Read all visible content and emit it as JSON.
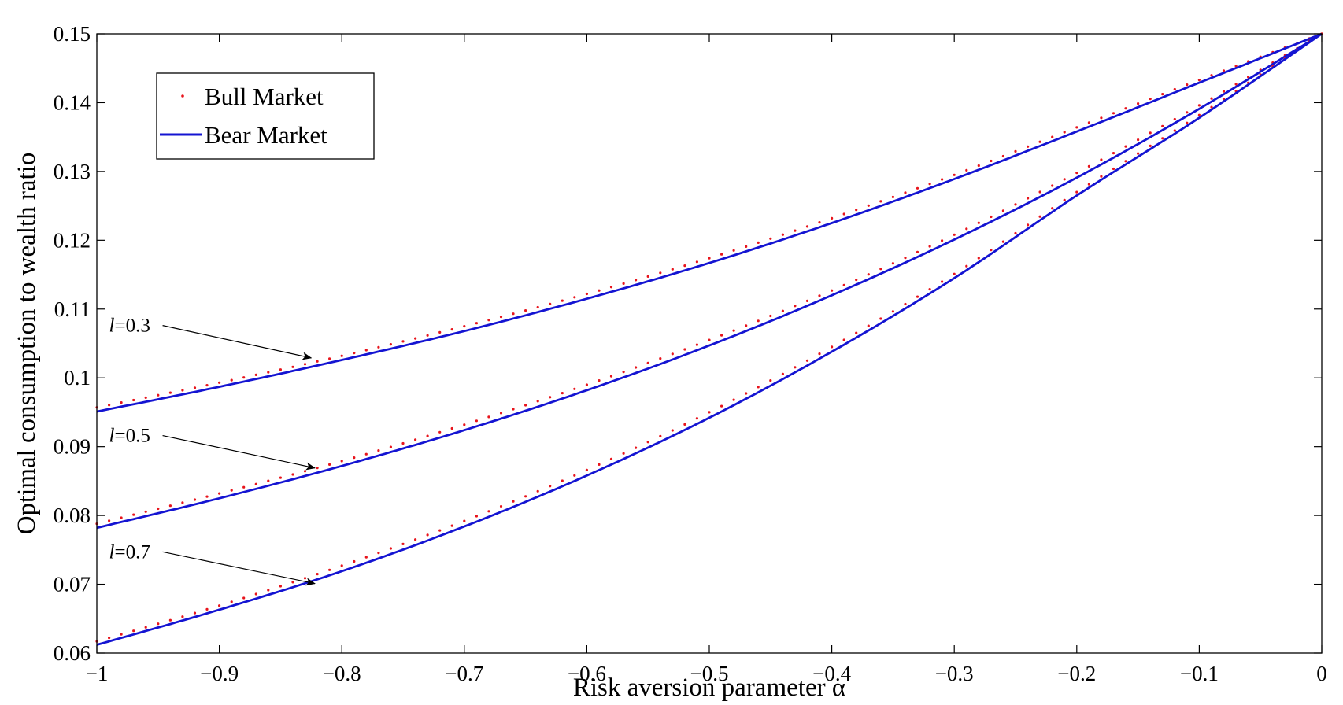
{
  "chart_data": {
    "type": "line",
    "xlabel": "Risk aversion parameter α",
    "ylabel": "Optimal consumption to wealth ratio",
    "xlim": [
      -1,
      0
    ],
    "ylim": [
      0.06,
      0.15
    ],
    "xticks": [
      -1,
      -0.9,
      -0.8,
      -0.7,
      -0.6,
      -0.5,
      -0.4,
      -0.3,
      -0.2,
      -0.1,
      0
    ],
    "xtick_labels": [
      "−1",
      "−0.9",
      "−0.8",
      "−0.7",
      "−0.6",
      "−0.5",
      "−0.4",
      "−0.3",
      "−0.2",
      "−0.1",
      "0"
    ],
    "yticks": [
      0.06,
      0.07,
      0.08,
      0.09,
      0.1,
      0.11,
      0.12,
      0.13,
      0.14,
      0.15
    ],
    "ytick_labels": [
      "0.06",
      "0.07",
      "0.08",
      "0.09",
      "0.1",
      "0.11",
      "0.12",
      "0.13",
      "0.14",
      "0.15"
    ],
    "grid": false,
    "legend_position": "top-left",
    "legend": [
      {
        "label": "Bull Market",
        "style": "dotted",
        "color": "#e8141c"
      },
      {
        "label": "Bear Market",
        "style": "solid",
        "color": "#1414d2"
      }
    ],
    "series": [
      {
        "group": "l=0.3",
        "market": "Bull Market",
        "style": "dotted",
        "color": "#e8141c",
        "x": [
          -1,
          -0.9,
          -0.8,
          -0.7,
          -0.6,
          -0.5,
          -0.4,
          -0.3,
          -0.2,
          -0.1,
          0
        ],
        "y": [
          0.0957,
          0.0993,
          0.1032,
          0.1075,
          0.1122,
          0.1174,
          0.1232,
          0.1295,
          0.1364,
          0.1433,
          0.15
        ]
      },
      {
        "group": "l=0.3",
        "market": "Bear Market",
        "style": "solid",
        "color": "#1414d2",
        "x": [
          -1,
          -0.9,
          -0.8,
          -0.7,
          -0.6,
          -0.5,
          -0.4,
          -0.3,
          -0.2,
          -0.1,
          0
        ],
        "y": [
          0.0951,
          0.0987,
          0.1026,
          0.1068,
          0.1115,
          0.1167,
          0.1225,
          0.1289,
          0.1358,
          0.1429,
          0.15
        ]
      },
      {
        "group": "l=0.5",
        "market": "Bull Market",
        "style": "dotted",
        "color": "#e8141c",
        "x": [
          -1,
          -0.9,
          -0.8,
          -0.7,
          -0.6,
          -0.5,
          -0.4,
          -0.3,
          -0.2,
          -0.1,
          0
        ],
        "y": [
          0.0788,
          0.0832,
          0.0879,
          0.0932,
          0.099,
          0.1055,
          0.1127,
          0.1208,
          0.1298,
          0.1396,
          0.15
        ]
      },
      {
        "group": "l=0.5",
        "market": "Bear Market",
        "style": "solid",
        "color": "#1414d2",
        "x": [
          -1,
          -0.9,
          -0.8,
          -0.7,
          -0.6,
          -0.5,
          -0.4,
          -0.3,
          -0.2,
          -0.1,
          0
        ],
        "y": [
          0.0782,
          0.0825,
          0.0872,
          0.0924,
          0.0982,
          0.1047,
          0.112,
          0.1201,
          0.1291,
          0.1391,
          0.15
        ]
      },
      {
        "group": "l=0.7",
        "market": "Bull Market",
        "style": "dotted",
        "color": "#e8141c",
        "x": [
          -1,
          -0.9,
          -0.8,
          -0.7,
          -0.6,
          -0.5,
          -0.4,
          -0.3,
          -0.2,
          -0.1,
          0
        ],
        "y": [
          0.0617,
          0.0669,
          0.0727,
          0.0792,
          0.0866,
          0.095,
          0.1045,
          0.1151,
          0.127,
          0.1382,
          0.15
        ]
      },
      {
        "group": "l=0.7",
        "market": "Bear Market",
        "style": "solid",
        "color": "#1414d2",
        "x": [
          -1,
          -0.9,
          -0.8,
          -0.7,
          -0.6,
          -0.5,
          -0.4,
          -0.3,
          -0.2,
          -0.1,
          0
        ],
        "y": [
          0.0612,
          0.0663,
          0.0719,
          0.0784,
          0.0858,
          0.0942,
          0.1038,
          0.1145,
          0.1265,
          0.1378,
          0.15
        ]
      }
    ],
    "annotations": [
      {
        "italic": "l",
        "rest": "=0.3",
        "text_x": -0.99,
        "text_y": 0.1067,
        "arrow_to_x": -0.825,
        "arrow_to_y": 0.1029
      },
      {
        "italic": "l",
        "rest": "=0.5",
        "text_x": -0.99,
        "text_y": 0.0907,
        "arrow_to_x": -0.822,
        "arrow_to_y": 0.0869
      },
      {
        "italic": "l",
        "rest": "=0.7",
        "text_x": -0.99,
        "text_y": 0.0738,
        "arrow_to_x": -0.822,
        "arrow_to_y": 0.0701
      }
    ]
  }
}
